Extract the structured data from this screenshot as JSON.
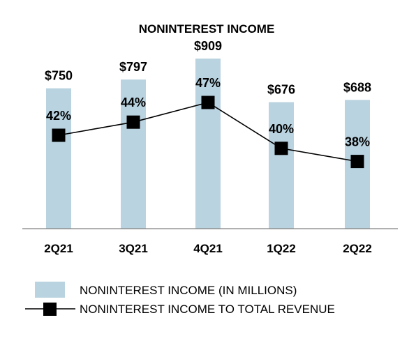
{
  "chart_data": {
    "type": "bar",
    "title": "NONINTEREST INCOME",
    "categories": [
      "2Q21",
      "3Q21",
      "4Q21",
      "1Q22",
      "2Q22"
    ],
    "series": [
      {
        "name": "NONINTEREST INCOME (IN MILLIONS)",
        "kind": "bar",
        "values": [
          750,
          797,
          909,
          676,
          688
        ],
        "labels": [
          "$750",
          "$797",
          "$909",
          "$676",
          "$688"
        ],
        "color": "#b9d3e0"
      },
      {
        "name": "NONINTEREST INCOME TO TOTAL REVENUE",
        "kind": "line",
        "values": [
          42,
          44,
          47,
          40,
          38
        ],
        "labels": [
          "42%",
          "44%",
          "47%",
          "40%",
          "38%"
        ],
        "color": "#000000"
      }
    ],
    "ylim": [
      0,
      909
    ],
    "grid": false,
    "legend": "bottom"
  }
}
